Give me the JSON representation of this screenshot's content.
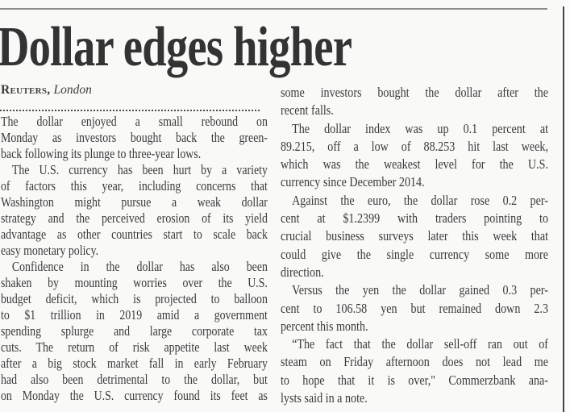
{
  "masthead": {
    "headline": "Dollar edges higher"
  },
  "byline": {
    "agency": "Reuters,",
    "location": "London"
  },
  "article": {
    "left_column_lines": [
      {
        "t": "The dollar enjoyed a small rebound on"
      },
      {
        "t": "Monday as investors bought back the green-"
      },
      {
        "t": "back following its plunge to three-year lows.",
        "e": 1
      },
      {
        "t": "The U.S. currency has been hurt by a variety",
        "i": 1
      },
      {
        "t": "of factors this year, including concerns that"
      },
      {
        "t": "Washington might pursue a weak dollar"
      },
      {
        "t": "strategy and the perceived erosion of its yield"
      },
      {
        "t": "advantage as other countries start to scale back"
      },
      {
        "t": "easy monetary policy.",
        "e": 1
      },
      {
        "t": "Confidence in the dollar has also been",
        "i": 1
      },
      {
        "t": "shaken by mounting worries over the U.S."
      },
      {
        "t": "budget deficit, which is projected to balloon"
      },
      {
        "t": "to $1 trillion in 2019 amid a government"
      },
      {
        "t": "spending splurge and large corporate tax"
      },
      {
        "t": "cuts. The return of risk appetite last week"
      },
      {
        "t": "after a big stock market fall in early February"
      },
      {
        "t": "had also been detrimental to the dollar, but"
      },
      {
        "t": "on Monday the U.S. currency found its feet as"
      }
    ],
    "right_column_lines": [
      {
        "t": "some investors bought the dollar after the"
      },
      {
        "t": "recent falls.",
        "e": 1
      },
      {
        "t": "The dollar index was up 0.1 percent at",
        "i": 1
      },
      {
        "t": "89.215, off a low of 88.253 hit last week,"
      },
      {
        "t": "which was the weakest level for the U.S."
      },
      {
        "t": "currency since December 2014.",
        "e": 1
      },
      {
        "t": "Against the euro, the dollar rose 0.2 per-",
        "i": 1
      },
      {
        "t": "cent at $1.2399 with traders pointing to"
      },
      {
        "t": "crucial business surveys later this week that"
      },
      {
        "t": "could give the single currency some more"
      },
      {
        "t": "direction.",
        "e": 1
      },
      {
        "t": "Versus the yen the dollar gained 0.3 per-",
        "i": 1
      },
      {
        "t": "cent to 106.58 yen but remained down 2.3"
      },
      {
        "t": "percent this month.",
        "e": 1
      },
      {
        "t": "“The fact that the dollar sell-off ran out of",
        "i": 1
      },
      {
        "t": "steam on Friday afternoon does not lead me"
      },
      {
        "t": "to hope that it is over,\" Commerzbank ana-"
      },
      {
        "t": "lysts said in a note.",
        "e": 1
      }
    ]
  },
  "colors": {
    "text": "#3a3a3a",
    "headline": "#333333",
    "top_rule": "#8e8e8e",
    "right_rule": "#454545",
    "background": "#f9f9f8"
  }
}
